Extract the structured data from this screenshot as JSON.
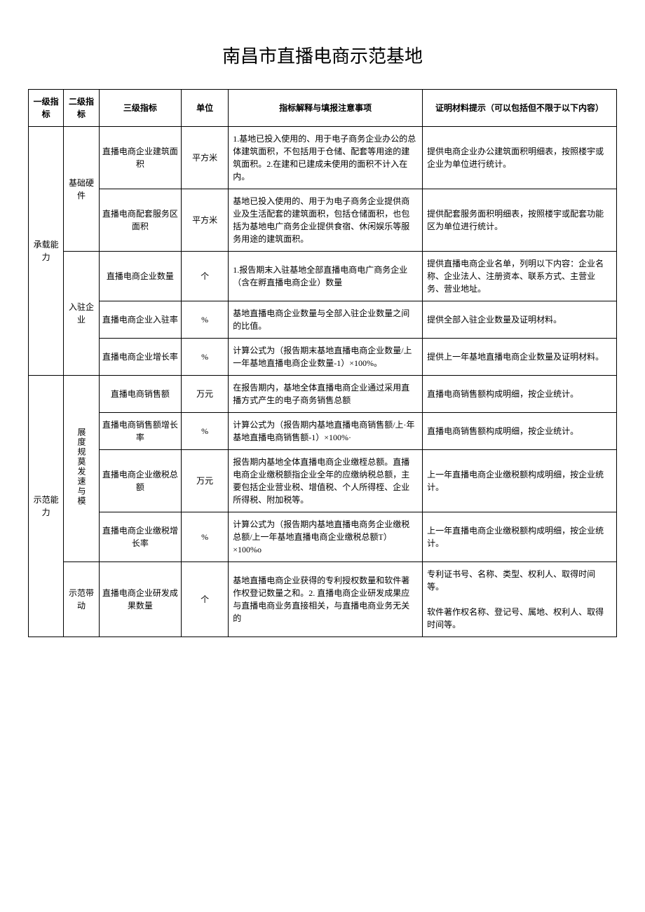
{
  "title": "南昌市直播电商示范基地",
  "headers": {
    "col1": "一级指标",
    "col2": "二级指标",
    "col3": "三级指标",
    "col4": "单位",
    "col5": "指标解释与填报注意事项",
    "col6": "证明材料提示（可以包括但不限于以下内容）"
  },
  "level1": {
    "group1": "承载能力",
    "group2": "示范能力"
  },
  "level2": {
    "g1_1": "基础硬件",
    "g1_2": "入驻企业",
    "g2_1": "展度规莫发速与模",
    "g2_2": "示范带动"
  },
  "rows": [
    {
      "col3": "直播电商企业建筑面积",
      "col4": "平方米",
      "col5": "1.基地已投入使用的、用于电子商务企业办公的总体建筑面积，不包括用于仓储、配套等用途的建筑面积。2.在建和已建成未使用的面积不计入在内。",
      "col6": "提供电商企业办公建筑面积明细表，按照楼宇或企业为单位进行统计。"
    },
    {
      "col3": "直播电商配套服务区面积",
      "col4": "平方米",
      "col5": "基地已投入使用的、用于为电子商务企业提供商业及生活配套的建筑面积，包括仓储面积，也包括为基地电广商务企业提供食宿、休闲娱乐等服务用途的建筑面积。",
      "col6": "提供配套服务面积明细表，按照楼宇或配套功能区为单位进行统计。"
    },
    {
      "col3": "直播电商企业数量",
      "col4": "个",
      "col5": "1.报告期末入驻基地全部直播电商电广商务企业（含在孵直播电商企业）数量",
      "col6": "提供直播电商企业名单，列明以下内容：企业名称、企业法人、注册资本、联系方式、主营业务、营业地址。"
    },
    {
      "col3": "直播电商企业入驻率",
      "col4": "%",
      "col5": "基地直播电商企业数量与全部入驻企业数量之间的比值。",
      "col6": "提供全部入驻企业数量及证明材料。"
    },
    {
      "col3": "直播电商企业增长率",
      "col4": "%",
      "col5": "计算公式为（报告期末基地直播电商企业数量/上一年基地直播电商企业数量-1）×100%。",
      "col6": "提供上一年基地直播电商企业数量及证明材料。"
    },
    {
      "col3": "直播电商销售额",
      "col4": "万元",
      "col5": "在报告期内，基地全体直播电商企业通过采用直播方式产生的电子商务销售总额",
      "col6": "直播电商销售额构成明细，按企业统计。"
    },
    {
      "col3": "直播电商销售额增长率",
      "col4": "%",
      "col5": "计算公式为（报告期内基地直播电商销售额/上·年基地直播电商销售额-1）×100%·",
      "col6": "直播电商销售额构成明细，按企业统计。"
    },
    {
      "col3": "直播电商企业缴税总额",
      "col4": "万元",
      "col5": "报告期内基地全体直播电商企业缴桎总额。直播电商企业缴税额指企业全年的应缴纳税总额，主要包括企业营业税、增值税、个人所得桎、企业所得税、附加税等。",
      "col6": "上一年直播电商企业缴税额构成明细，按企业统计。"
    },
    {
      "col3": "直播电商企业缴税增长率",
      "col4": "%",
      "col5": "计算公式为（报告期内基地直播电商务企业缴税总额/上一年基地直播电商企业缴税总额T）×100%o",
      "col6": "上一年直播电商企业缴税额构成明细，按企业统计。"
    },
    {
      "col3": "直播电商企业研发成果数量",
      "col4": "个",
      "col5": "基地直播电商企业获得的专利授权数量和软件著作权登记数量之和。2. 直播电商企业研发成果应与直播电商业务直接相关，与直播电商业务无关的",
      "col6": "专利证书号、名称、类型、权利人、取得时间等。\n\n软件著作权名称、登记号、属地、权利人、取得时间等。"
    }
  ]
}
